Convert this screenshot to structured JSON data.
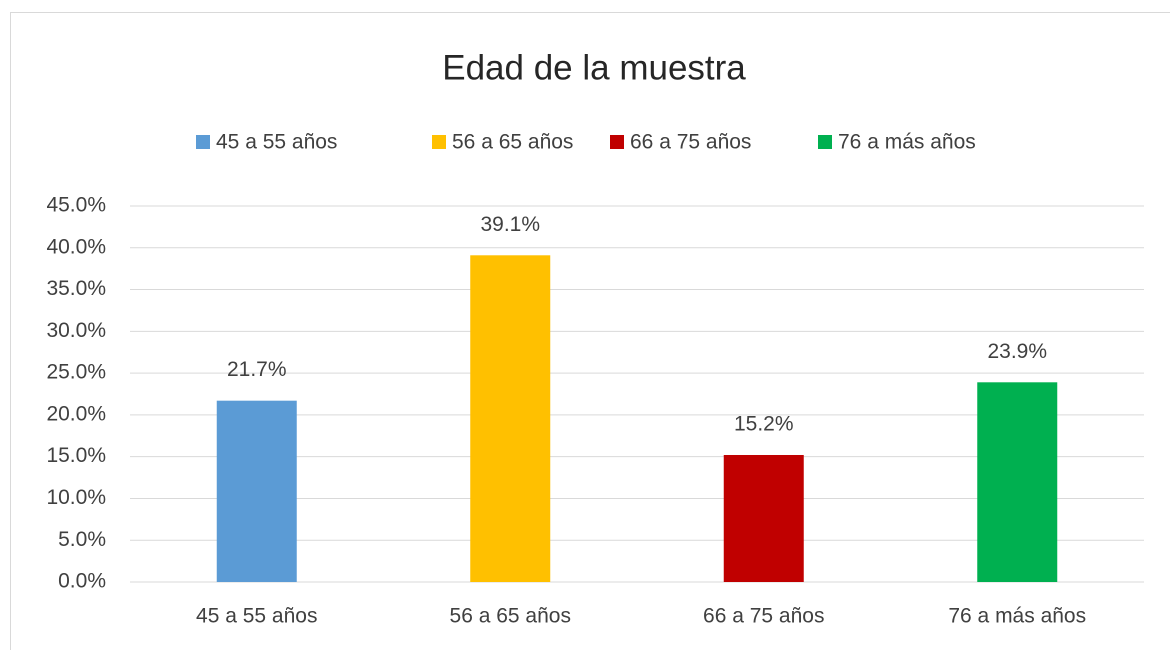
{
  "chart_data": {
    "type": "bar",
    "title": "Edad de la muestra",
    "categories": [
      "45 a 55 años",
      "56 a 65 años",
      "66 a 75 años",
      "76 a más años"
    ],
    "values": [
      21.7,
      39.1,
      15.2,
      23.9
    ],
    "value_labels": [
      "21.7%",
      "39.1%",
      "15.2%",
      "23.9%"
    ],
    "colors": [
      "#5b9bd5",
      "#ffc000",
      "#c00000",
      "#00b050"
    ],
    "ylim": [
      0,
      45
    ],
    "yticks": [
      {
        "value": 0,
        "label": "0.0%"
      },
      {
        "value": 5,
        "label": "5.0%"
      },
      {
        "value": 10,
        "label": "10.0%"
      },
      {
        "value": 15,
        "label": "15.0%"
      },
      {
        "value": 20,
        "label": "20.0%"
      },
      {
        "value": 25,
        "label": "25.0%"
      },
      {
        "value": 30,
        "label": "30.0%"
      },
      {
        "value": 35,
        "label": "35.0%"
      },
      {
        "value": 40,
        "label": "40.0%"
      },
      {
        "value": 45,
        "label": "45.0%"
      }
    ],
    "grid": true,
    "legend": "top"
  }
}
